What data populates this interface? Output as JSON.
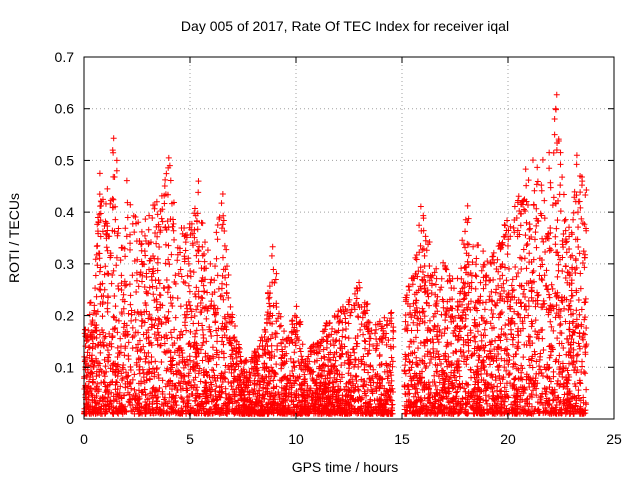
{
  "chart_data": {
    "type": "scatter",
    "title": "Day 005 of 2017, Rate Of TEC Index for receiver iqal",
    "xlabel": "GPS time / hours",
    "ylabel": "ROTI / TECUs",
    "xlim": [
      0,
      25
    ],
    "ylim": [
      0,
      0.7
    ],
    "xticks": [
      0,
      5,
      10,
      15,
      20,
      25
    ],
    "xtick_labels": [
      "0",
      "5",
      "10",
      "15",
      "20",
      "25"
    ],
    "yticks": [
      0,
      0.1,
      0.2,
      0.3,
      0.4,
      0.5,
      0.6,
      0.7
    ],
    "ytick_labels": [
      "0",
      "0.1",
      "0.2",
      "0.3",
      "0.4",
      "0.5",
      "0.6",
      "0.7"
    ],
    "grid": true,
    "marker": "plus",
    "color": "#ff0000",
    "envelope_note_values": [
      [
        0.0,
        0.18
      ],
      [
        0.5,
        0.25
      ],
      [
        0.7,
        0.47
      ],
      [
        1.0,
        0.4
      ],
      [
        1.4,
        0.54
      ],
      [
        1.7,
        0.3
      ],
      [
        2.0,
        0.47
      ],
      [
        2.3,
        0.4
      ],
      [
        2.8,
        0.38
      ],
      [
        3.5,
        0.42
      ],
      [
        4.0,
        0.5
      ],
      [
        4.4,
        0.35
      ],
      [
        5.0,
        0.38
      ],
      [
        5.4,
        0.46
      ],
      [
        6.0,
        0.28
      ],
      [
        6.5,
        0.43
      ],
      [
        7.0,
        0.2
      ],
      [
        7.5,
        0.1
      ],
      [
        8.0,
        0.12
      ],
      [
        8.5,
        0.16
      ],
      [
        8.9,
        0.33
      ],
      [
        9.5,
        0.14
      ],
      [
        10.0,
        0.22
      ],
      [
        10.5,
        0.12
      ],
      [
        11.0,
        0.15
      ],
      [
        11.5,
        0.18
      ],
      [
        12.0,
        0.2
      ],
      [
        12.5,
        0.22
      ],
      [
        13.0,
        0.26
      ],
      [
        13.5,
        0.2
      ],
      [
        14.0,
        0.18
      ],
      [
        14.5,
        0.2
      ],
      [
        15.0,
        0.22
      ],
      [
        15.5,
        0.3
      ],
      [
        16.0,
        0.43
      ],
      [
        16.5,
        0.28
      ],
      [
        17.0,
        0.3
      ],
      [
        17.5,
        0.25
      ],
      [
        18.0,
        0.42
      ],
      [
        18.5,
        0.35
      ],
      [
        19.0,
        0.3
      ],
      [
        19.5,
        0.32
      ],
      [
        20.0,
        0.4
      ],
      [
        20.5,
        0.44
      ],
      [
        21.0,
        0.49
      ],
      [
        21.5,
        0.5
      ],
      [
        22.0,
        0.52
      ],
      [
        22.3,
        0.63
      ],
      [
        22.7,
        0.4
      ],
      [
        23.0,
        0.38
      ],
      [
        23.3,
        0.51
      ],
      [
        23.6,
        0.45
      ]
    ],
    "points": [
      [
        8.9,
        0.333
      ],
      [
        1.4,
        0.543
      ],
      [
        22.3,
        0.627
      ],
      [
        22.25,
        0.6
      ],
      [
        22.2,
        0.58
      ],
      [
        22.2,
        0.55
      ],
      [
        23.25,
        0.51
      ],
      [
        23.4,
        0.47
      ],
      [
        23.5,
        0.46
      ],
      [
        23.3,
        0.4
      ],
      [
        4.0,
        0.505
      ],
      [
        4.05,
        0.49
      ],
      [
        5.4,
        0.46
      ],
      [
        6.55,
        0.435
      ],
      [
        0.75,
        0.475
      ],
      [
        1.55,
        0.5
      ],
      [
        1.55,
        0.48
      ]
    ]
  }
}
